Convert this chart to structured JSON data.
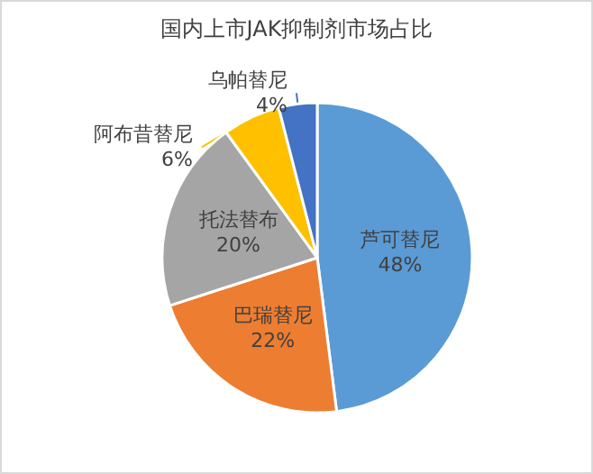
{
  "chart_data": {
    "type": "pie",
    "title": "国内上市JAK抑制剂市场占比",
    "categories": [
      "芦可替尼",
      "巴瑞替尼",
      "托法替布",
      "阿布昔替尼",
      "乌帕替尼"
    ],
    "values": [
      48,
      22,
      20,
      6,
      4
    ],
    "colors": [
      "#5b9bd5",
      "#ed7d31",
      "#a5a5a5",
      "#ffc000",
      "#4472c4"
    ],
    "value_labels": [
      "48%",
      "22%",
      "20%",
      "6%",
      "4%"
    ],
    "legend": false
  }
}
